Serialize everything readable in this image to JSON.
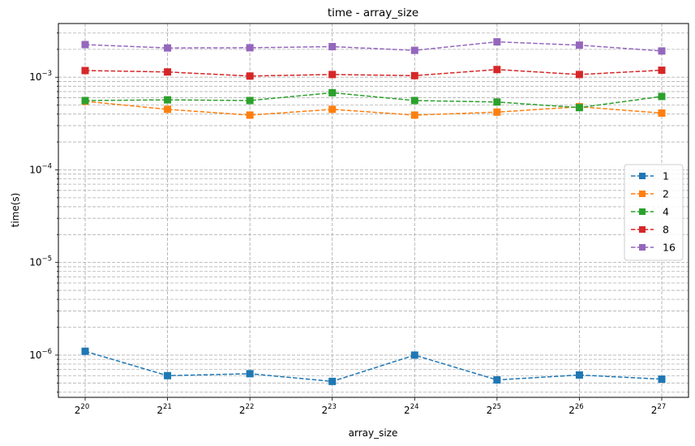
{
  "chart_data": {
    "type": "line",
    "title": "time - array_size",
    "xlabel": "array_size",
    "ylabel": "time(s)",
    "x_base": "2",
    "x_exponents": [
      20,
      21,
      22,
      23,
      24,
      25,
      26,
      27
    ],
    "x_tick_labels": [
      "2^20",
      "2^21",
      "2^22",
      "2^23",
      "2^24",
      "2^25",
      "2^26",
      "2^27"
    ],
    "y_scale": "log",
    "ylim": [
      3.5e-07,
      0.0038
    ],
    "y_ticks": [
      {
        "value": 1e-06,
        "base": "10",
        "exp": "−6"
      },
      {
        "value": 1e-05,
        "base": "10",
        "exp": "−5"
      },
      {
        "value": 0.0001,
        "base": "10",
        "exp": "−4"
      },
      {
        "value": 0.001,
        "base": "10",
        "exp": "−3"
      }
    ],
    "grid": true,
    "grid_minor": true,
    "legend_position": "right",
    "line_style": "dashed",
    "marker": "square",
    "series": [
      {
        "name": "1",
        "color": "#1f77b4",
        "values": [
          1.1e-06,
          6e-07,
          6.3e-07,
          5.2e-07,
          1e-06,
          5.4e-07,
          6.1e-07,
          5.5e-07
        ]
      },
      {
        "name": "2",
        "color": "#ff7f0e",
        "values": [
          0.00055,
          0.00045,
          0.00039,
          0.00045,
          0.00039,
          0.00042,
          0.00048,
          0.00041
        ]
      },
      {
        "name": "4",
        "color": "#2ca02c",
        "values": [
          0.00056,
          0.00057,
          0.00056,
          0.00068,
          0.00056,
          0.00054,
          0.00047,
          0.00062
        ]
      },
      {
        "name": "8",
        "color": "#d62728",
        "values": [
          0.00118,
          0.00114,
          0.00103,
          0.00107,
          0.00104,
          0.00121,
          0.00107,
          0.00119
        ]
      },
      {
        "name": "16",
        "color": "#9467bd",
        "values": [
          0.00225,
          0.00207,
          0.00208,
          0.00214,
          0.00195,
          0.00241,
          0.00222,
          0.00192
        ]
      }
    ]
  }
}
